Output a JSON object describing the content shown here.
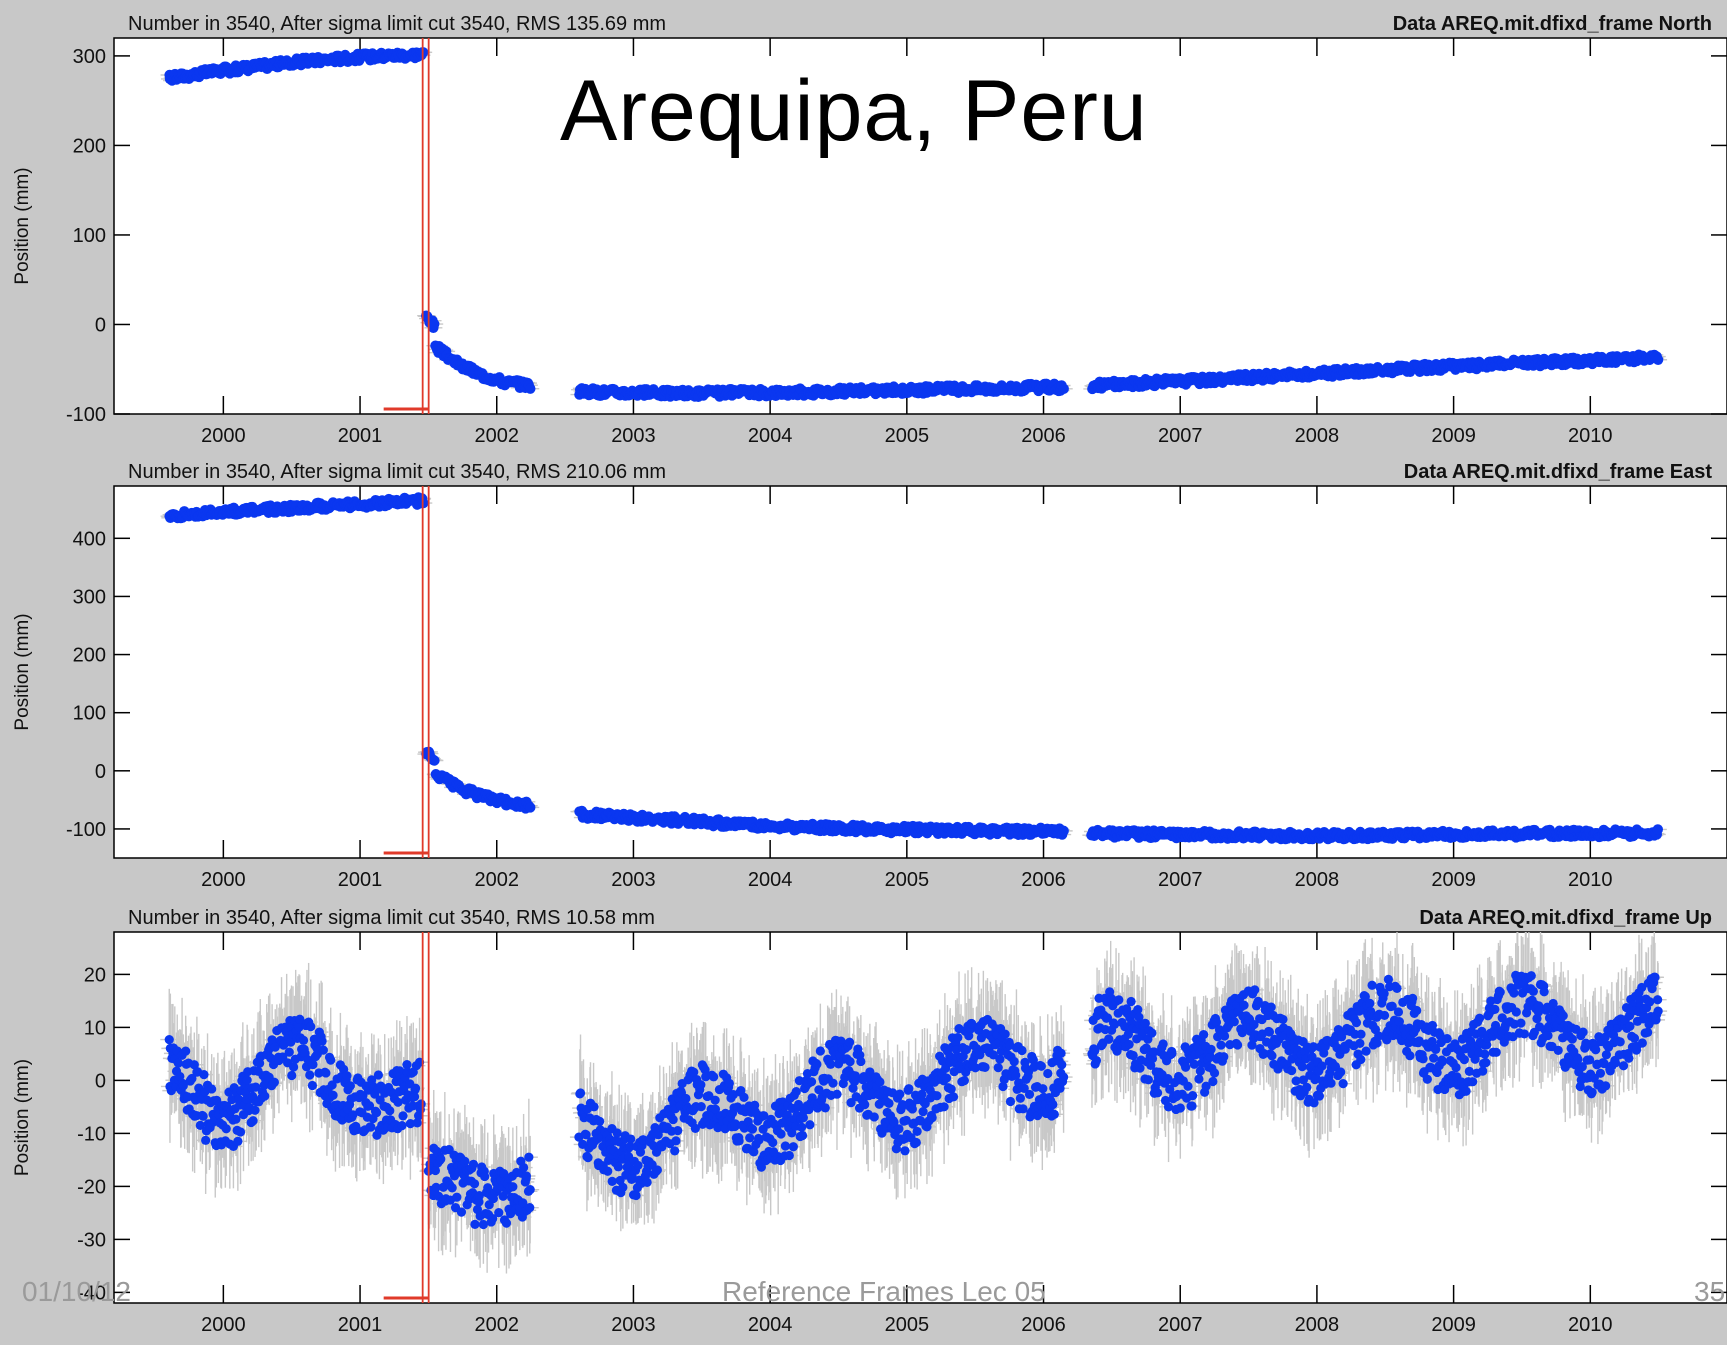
{
  "slide": {
    "title": "Arequipa, Peru",
    "footer_date": "01/10/12",
    "footer_center": "Reference Frames Lec 05",
    "page_number": "35"
  },
  "colors": {
    "background": "#c8c8c8",
    "plot_area": "#ffffff",
    "points": "#0a37f0",
    "error_bars": "#c8c8c8",
    "event_line": "#e03a2a"
  },
  "chart_data": [
    {
      "type": "scatter",
      "header_left": "Number in   3540, After sigma limit cut   3540, RMS 135.69 mm",
      "header_right": "Data AREQ.mit.dfixd_frame North",
      "ylabel": "Position (mm)",
      "xlim": [
        1999.2,
        2011.0
      ],
      "ylim": [
        -100,
        320
      ],
      "yticks": [
        300,
        200,
        100,
        0,
        -100
      ],
      "xticks": [
        "2000",
        "2001",
        "2002",
        "2003",
        "2004",
        "2005",
        "2006",
        "2007",
        "2008",
        "2009",
        "2010"
      ],
      "event_year": 2001.48,
      "segments": [
        {
          "start": 1999.6,
          "end": 2001.47,
          "values": [
            275,
            282,
            288,
            293,
            297,
            300,
            302
          ]
        },
        {
          "start": 2001.48,
          "end": 2001.55,
          "values": [
            10,
            5,
            -5
          ]
        },
        {
          "start": 2001.55,
          "end": 2002.25,
          "values": [
            -25,
            -45,
            -57,
            -65,
            -68
          ]
        },
        {
          "start": 2002.6,
          "end": 2006.15,
          "values": [
            -75,
            -77,
            -76,
            -74,
            -72,
            -70
          ]
        },
        {
          "start": 2006.35,
          "end": 2010.5,
          "values": [
            -68,
            -62,
            -55,
            -48,
            -42,
            -37
          ]
        }
      ]
    },
    {
      "type": "scatter",
      "header_left": "Number in   3540, After sigma limit cut   3540, RMS 210.06 mm",
      "header_right": "Data AREQ.mit.dfixd_frame East",
      "ylabel": "Position (mm)",
      "xlim": [
        1999.2,
        2011.0
      ],
      "ylim": [
        -150,
        490
      ],
      "yticks": [
        400,
        300,
        200,
        100,
        0,
        -100
      ],
      "xticks": [
        "2000",
        "2001",
        "2002",
        "2003",
        "2004",
        "2005",
        "2006",
        "2007",
        "2008",
        "2009",
        "2010"
      ],
      "event_year": 2001.48,
      "segments": [
        {
          "start": 1999.6,
          "end": 2001.47,
          "values": [
            440,
            445,
            450,
            455,
            460,
            465
          ]
        },
        {
          "start": 2001.48,
          "end": 2001.55,
          "values": [
            35,
            25,
            10
          ]
        },
        {
          "start": 2001.55,
          "end": 2002.25,
          "values": [
            -5,
            -30,
            -45,
            -55,
            -60
          ]
        },
        {
          "start": 2002.6,
          "end": 2006.15,
          "values": [
            -75,
            -85,
            -95,
            -100,
            -103,
            -105
          ]
        },
        {
          "start": 2006.35,
          "end": 2010.5,
          "values": [
            -108,
            -110,
            -112,
            -110,
            -108,
            -107
          ]
        }
      ]
    },
    {
      "type": "scatter",
      "header_left": "Number in   3540, After sigma limit cut   3540, RMS  10.58 mm",
      "header_right": "Data AREQ.mit.dfixd_frame Up",
      "ylabel": "Position (mm)",
      "xlim": [
        1999.2,
        2011.0
      ],
      "ylim": [
        -42,
        28
      ],
      "yticks": [
        20,
        10,
        0,
        -10,
        -20,
        -30,
        -40
      ],
      "xticks": [
        "2000",
        "2001",
        "2002",
        "2003",
        "2004",
        "2005",
        "2006",
        "2007",
        "2008",
        "2009",
        "2010"
      ],
      "event_year": 2001.48,
      "seasonal": {
        "amplitude": 7,
        "noise": 6,
        "errbar": 7
      },
      "segments": [
        {
          "start": 1999.6,
          "end": 2001.45,
          "values": [
            0,
            -2,
            0,
            2,
            0,
            -8
          ]
        },
        {
          "start": 2001.5,
          "end": 2002.25,
          "values": [
            -25,
            -20,
            -15,
            -20
          ]
        },
        {
          "start": 2002.6,
          "end": 2006.15,
          "values": [
            -12,
            -10,
            -5,
            -3,
            0,
            5
          ]
        },
        {
          "start": 2006.35,
          "end": 2010.5,
          "values": [
            5,
            6,
            7,
            8,
            9,
            8
          ]
        }
      ]
    }
  ]
}
